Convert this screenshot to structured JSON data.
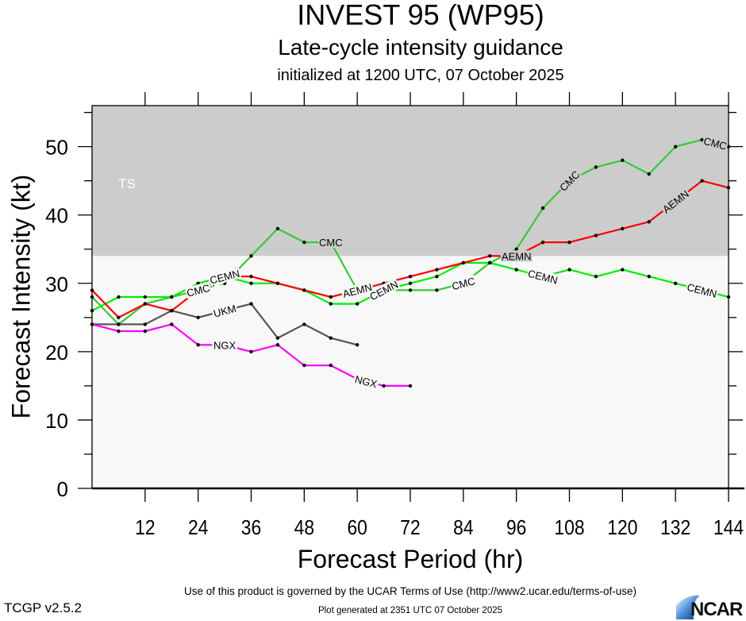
{
  "header": {
    "title": "INVEST 95 (WP95)",
    "subtitle": "Late-cycle intensity guidance",
    "initialized": "initialized at 1200 UTC, 07 October 2025"
  },
  "footer": {
    "terms": "Use of this product is governed by the UCAR Terms of Use (http://www2.ucar.edu/terms-of-use)",
    "version": "TCGP v2.5.2",
    "generated": "Plot generated at 2351 UTC   07 October 2025",
    "logo_text": "NCAR"
  },
  "colors": {
    "ts_band": "#cccccc",
    "below_band": "#f8f8f8",
    "AEMN": "#ff0000",
    "CEMN": "#00ee00",
    "CMC": "#33cc33",
    "UKM": "#555555",
    "NGX": "#ff00ff"
  },
  "chart_data": {
    "type": "line",
    "title": "INVEST 95 (WP95)",
    "subtitle": "Late-cycle intensity guidance",
    "xlabel": "Forecast Period (hr)",
    "ylabel": "Forecast Intensity (kt)",
    "xlim": [
      0,
      144
    ],
    "ylim": [
      0,
      56
    ],
    "xticks": [
      12,
      24,
      36,
      48,
      60,
      72,
      84,
      96,
      108,
      120,
      132,
      144
    ],
    "yticks": [
      0,
      10,
      20,
      30,
      40,
      50
    ],
    "bands": [
      {
        "label": "TS",
        "from": 34,
        "to": 56
      }
    ],
    "grid": false,
    "series": [
      {
        "name": "AEMN",
        "x": [
          0,
          6,
          12,
          18,
          24,
          30,
          36,
          42,
          48,
          54,
          60,
          66,
          72,
          78,
          84,
          90,
          96,
          102,
          108,
          114,
          120,
          126,
          132,
          138,
          144
        ],
        "values": [
          29,
          25,
          27,
          26,
          29,
          31,
          31,
          30,
          29,
          28,
          29,
          30,
          31,
          32,
          33,
          34,
          34,
          36,
          36,
          37,
          38,
          39,
          42,
          45,
          44
        ],
        "labels_at": [
          30,
          60,
          96,
          132
        ]
      },
      {
        "name": "CEMN",
        "x": [
          0,
          6,
          12,
          18,
          24,
          30,
          36,
          42,
          48,
          54,
          60,
          66,
          72,
          78,
          84,
          90,
          96,
          102,
          108,
          114,
          120,
          126,
          132,
          138,
          144
        ],
        "values": [
          26,
          28,
          28,
          28,
          30,
          31,
          30,
          30,
          29,
          27,
          27,
          29,
          30,
          31,
          33,
          33,
          32,
          31,
          32,
          31,
          32,
          31,
          30,
          29,
          28
        ],
        "labels_at": [
          30,
          66,
          102,
          138
        ]
      },
      {
        "name": "CMC",
        "x": [
          0,
          6,
          12,
          18,
          24,
          30,
          36,
          42,
          48,
          54,
          60,
          66,
          72,
          78,
          84,
          90,
          96,
          102,
          108,
          114,
          120,
          126,
          132,
          138,
          144
        ],
        "values": [
          28,
          24,
          27,
          28,
          29,
          30,
          34,
          38,
          36,
          36,
          29,
          29,
          29,
          29,
          30,
          33,
          35,
          41,
          45,
          47,
          48,
          46,
          50,
          51,
          50
        ],
        "labels_at": [
          24,
          54,
          84,
          108,
          141
        ]
      },
      {
        "name": "UKM",
        "x": [
          0,
          6,
          12,
          18,
          24,
          30,
          36,
          42,
          48,
          54,
          60
        ],
        "values": [
          24,
          24,
          24,
          26,
          25,
          26,
          27,
          22,
          24,
          22,
          21
        ],
        "labels_at": [
          30
        ]
      },
      {
        "name": "NGX",
        "x": [
          0,
          6,
          12,
          18,
          24,
          30,
          36,
          42,
          48,
          54,
          60,
          66,
          72
        ],
        "values": [
          24,
          23,
          23,
          24,
          21,
          21,
          20,
          21,
          18,
          18,
          16,
          15,
          15
        ],
        "labels_at": [
          30,
          62
        ]
      }
    ]
  }
}
